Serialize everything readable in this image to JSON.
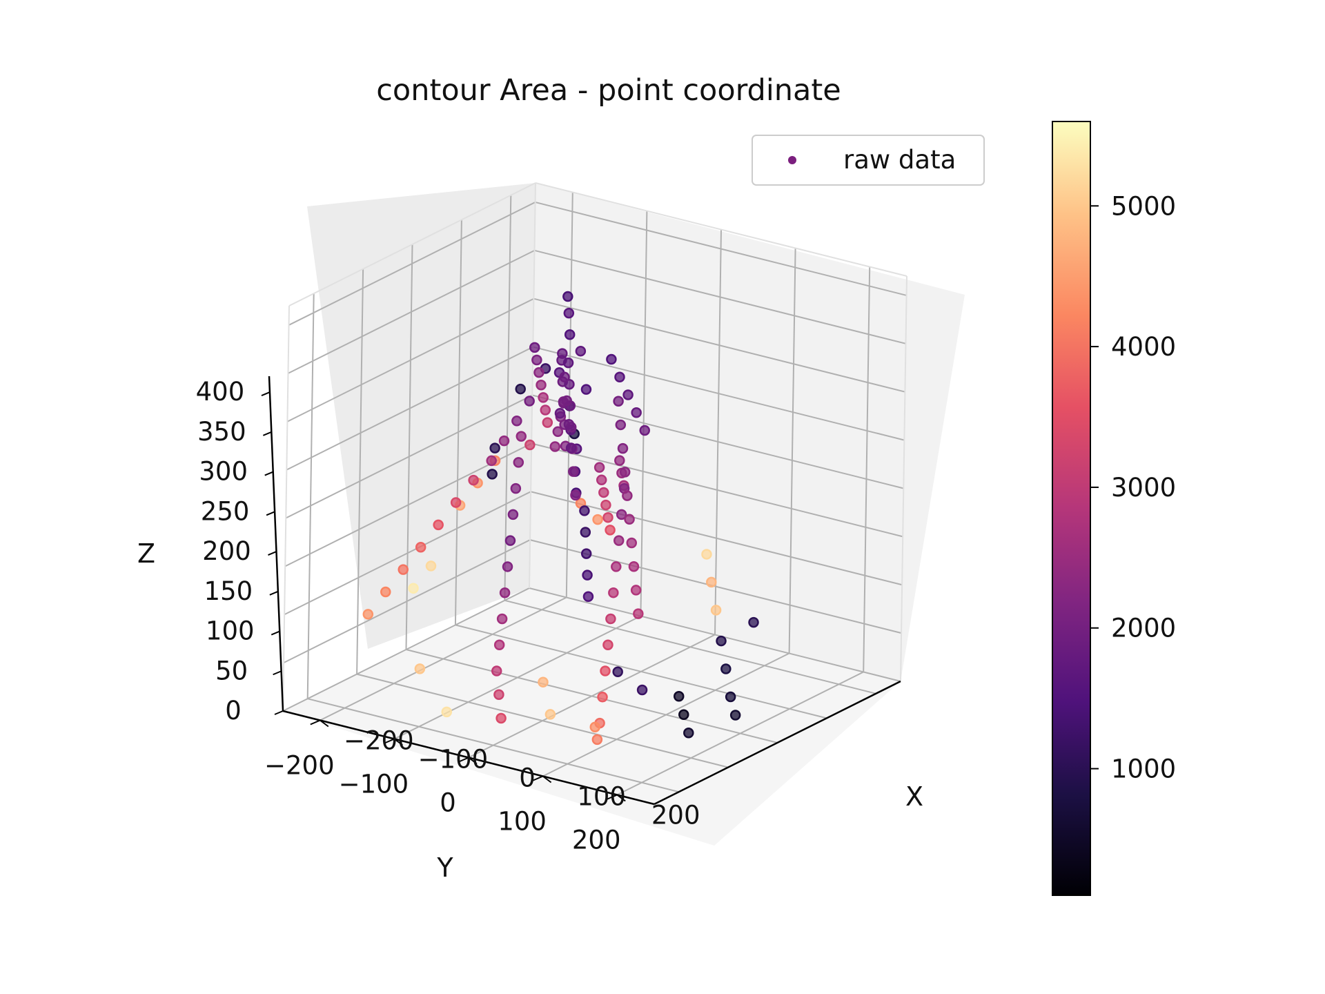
{
  "chart_data": {
    "type": "scatter",
    "title": "contour Area - point coordinate",
    "xlabel": "X",
    "ylabel": "Y",
    "zlabel": "Z",
    "xlim": [
      -250,
      250
    ],
    "ylim": [
      -250,
      250
    ],
    "zlim": [
      0,
      420
    ],
    "x_ticks": [
      "−200",
      "−100",
      "0",
      "100",
      "200"
    ],
    "y_ticks": [
      "−200",
      "−100",
      "0",
      "100",
      "200"
    ],
    "z_ticks": [
      "0",
      "50",
      "100",
      "150",
      "200",
      "250",
      "300",
      "350",
      "400"
    ],
    "colorbar": {
      "range": [
        100,
        5600
      ],
      "ticks": [
        "1000",
        "2000",
        "3000",
        "4000",
        "5000"
      ],
      "colormap": "magma"
    },
    "legend": {
      "label": "raw data",
      "marker_color": "#7b1f7e",
      "placement": "top-right"
    },
    "grid": true,
    "series": [
      {
        "name": "raw data",
        "points": [
          [
            -60,
            -30,
            395,
            1400
          ],
          [
            -55,
            -25,
            380,
            1600
          ],
          [
            -50,
            -20,
            360,
            1500
          ],
          [
            -45,
            -35,
            340,
            1700
          ],
          [
            -60,
            -15,
            320,
            1600
          ],
          [
            -40,
            -40,
            300,
            1500
          ],
          [
            -55,
            -10,
            280,
            1800
          ],
          [
            -50,
            -25,
            260,
            1700
          ],
          [
            -45,
            -30,
            240,
            1600
          ],
          [
            -40,
            -20,
            220,
            1500
          ],
          [
            -35,
            -15,
            200,
            1400
          ],
          [
            -30,
            -25,
            180,
            1300
          ],
          [
            -25,
            -20,
            160,
            1200
          ],
          [
            -20,
            -15,
            140,
            1300
          ],
          [
            -15,
            -10,
            120,
            1400
          ],
          [
            -10,
            -5,
            100,
            1500
          ],
          [
            -40,
            10,
            350,
            1800
          ],
          [
            -30,
            20,
            330,
            1900
          ],
          [
            -20,
            30,
            310,
            2000
          ],
          [
            -10,
            40,
            290,
            1900
          ],
          [
            0,
            50,
            270,
            1800
          ],
          [
            10,
            60,
            250,
            2100
          ],
          [
            20,
            70,
            230,
            2200
          ],
          [
            -70,
            30,
            300,
            2000
          ],
          [
            -80,
            40,
            280,
            2200
          ],
          [
            -90,
            50,
            260,
            2400
          ],
          [
            -100,
            60,
            240,
            2600
          ],
          [
            -110,
            -40,
            330,
            1900
          ],
          [
            -120,
            -60,
            310,
            2100
          ],
          [
            -130,
            -80,
            290,
            2300
          ],
          [
            -140,
            -100,
            270,
            2500
          ],
          [
            -150,
            -120,
            250,
            2700
          ],
          [
            -160,
            -140,
            230,
            2900
          ],
          [
            -170,
            -160,
            210,
            3100
          ],
          [
            -180,
            -140,
            190,
            3200
          ],
          [
            -60,
            -100,
            200,
            2600
          ],
          [
            -70,
            -120,
            180,
            2800
          ],
          [
            -80,
            -140,
            160,
            3000
          ],
          [
            -90,
            -160,
            140,
            3200
          ],
          [
            -100,
            -180,
            120,
            3300
          ],
          [
            -110,
            -200,
            100,
            3500
          ],
          [
            -20,
            -80,
            220,
            2400
          ],
          [
            -30,
            -100,
            200,
            2500
          ],
          [
            -40,
            -120,
            180,
            2700
          ],
          [
            0,
            -60,
            200,
            2200
          ],
          [
            10,
            -40,
            180,
            2300
          ],
          [
            20,
            -20,
            160,
            2500
          ],
          [
            30,
            0,
            140,
            2700
          ],
          [
            40,
            20,
            120,
            2900
          ],
          [
            50,
            40,
            100,
            3100
          ],
          [
            60,
            60,
            80,
            3300
          ],
          [
            70,
            80,
            60,
            3500
          ],
          [
            80,
            100,
            40,
            3700
          ],
          [
            90,
            120,
            20,
            3900
          ],
          [
            100,
            140,
            10,
            4100
          ],
          [
            110,
            160,
            30,
            4300
          ],
          [
            -100,
            0,
            250,
            2400
          ],
          [
            -90,
            20,
            230,
            2300
          ],
          [
            -80,
            40,
            210,
            2200
          ],
          [
            -70,
            60,
            190,
            2100
          ],
          [
            -60,
            80,
            170,
            2000
          ],
          [
            -50,
            100,
            150,
            2200
          ],
          [
            -40,
            120,
            130,
            2400
          ],
          [
            -30,
            140,
            110,
            2600
          ],
          [
            -20,
            160,
            90,
            2800
          ],
          [
            -10,
            180,
            70,
            3000
          ],
          [
            0,
            190,
            50,
            3200
          ],
          [
            10,
            200,
            30,
            3400
          ],
          [
            -150,
            20,
            200,
            3200
          ],
          [
            -160,
            40,
            180,
            3400
          ],
          [
            -170,
            60,
            160,
            3600
          ],
          [
            -180,
            80,
            140,
            3800
          ],
          [
            -190,
            100,
            120,
            4000
          ],
          [
            -200,
            120,
            100,
            4200
          ],
          [
            -210,
            140,
            80,
            4400
          ],
          [
            -200,
            -100,
            180,
            4200
          ],
          [
            -210,
            -80,
            160,
            4400
          ],
          [
            -220,
            -60,
            140,
            4600
          ],
          [
            120,
            -80,
            60,
            900
          ],
          [
            140,
            -60,
            40,
            800
          ],
          [
            160,
            -40,
            20,
            700
          ],
          [
            180,
            -20,
            10,
            600
          ],
          [
            150,
            -100,
            80,
            1000
          ],
          [
            130,
            20,
            30,
            500
          ],
          [
            150,
            40,
            20,
            400
          ],
          [
            170,
            60,
            10,
            600
          ],
          [
            120,
            80,
            50,
            1200
          ],
          [
            100,
            100,
            70,
            1100
          ],
          [
            -200,
            -200,
            250,
            1200
          ],
          [
            -220,
            -180,
            230,
            900
          ],
          [
            -180,
            -220,
            210,
            1100
          ],
          [
            -160,
            -200,
            190,
            800
          ],
          [
            -240,
            -160,
            170,
            1000
          ],
          [
            -230,
            -140,
            150,
            900
          ],
          [
            -120,
            150,
            150,
            5200
          ],
          [
            -130,
            170,
            130,
            5400
          ],
          [
            -100,
            200,
            60,
            5000
          ],
          [
            -50,
            220,
            30,
            5300
          ],
          [
            20,
            -200,
            100,
            5200
          ],
          [
            40,
            -180,
            80,
            4800
          ],
          [
            60,
            -160,
            60,
            5000
          ],
          [
            0,
            100,
            40,
            4800
          ],
          [
            30,
            130,
            20,
            5000
          ],
          [
            -150,
            -200,
            120,
            4200
          ],
          [
            -140,
            -220,
            100,
            4400
          ],
          [
            -80,
            -50,
            320,
            1800
          ],
          [
            -75,
            -45,
            300,
            1900
          ],
          [
            -70,
            -40,
            280,
            2000
          ],
          [
            -65,
            -35,
            260,
            2100
          ],
          [
            -60,
            -30,
            240,
            2200
          ],
          [
            -20,
            -60,
            330,
            1500
          ],
          [
            -15,
            -70,
            310,
            1600
          ],
          [
            -10,
            -80,
            290,
            1700
          ],
          [
            -5,
            -90,
            270,
            1800
          ],
          [
            0,
            -100,
            250,
            1900
          ],
          [
            -35,
            5,
            340,
            1700
          ],
          [
            -30,
            10,
            320,
            1800
          ],
          [
            -25,
            15,
            300,
            1900
          ],
          [
            -20,
            20,
            280,
            2000
          ],
          [
            -15,
            25,
            260,
            2100
          ],
          [
            10,
            -30,
            300,
            2000
          ],
          [
            20,
            -20,
            280,
            2100
          ],
          [
            30,
            -10,
            260,
            2200
          ],
          [
            40,
            0,
            240,
            2300
          ],
          [
            50,
            10,
            220,
            2400
          ],
          [
            -90,
            -70,
            270,
            2100
          ],
          [
            -100,
            -80,
            250,
            2200
          ],
          [
            -110,
            -90,
            230,
            2300
          ],
          [
            -120,
            -100,
            210,
            2400
          ],
          [
            60,
            20,
            200,
            2500
          ],
          [
            70,
            30,
            180,
            2600
          ],
          [
            80,
            40,
            160,
            2700
          ],
          [
            90,
            50,
            140,
            2800
          ],
          [
            100,
            60,
            120,
            2900
          ]
        ]
      }
    ]
  }
}
